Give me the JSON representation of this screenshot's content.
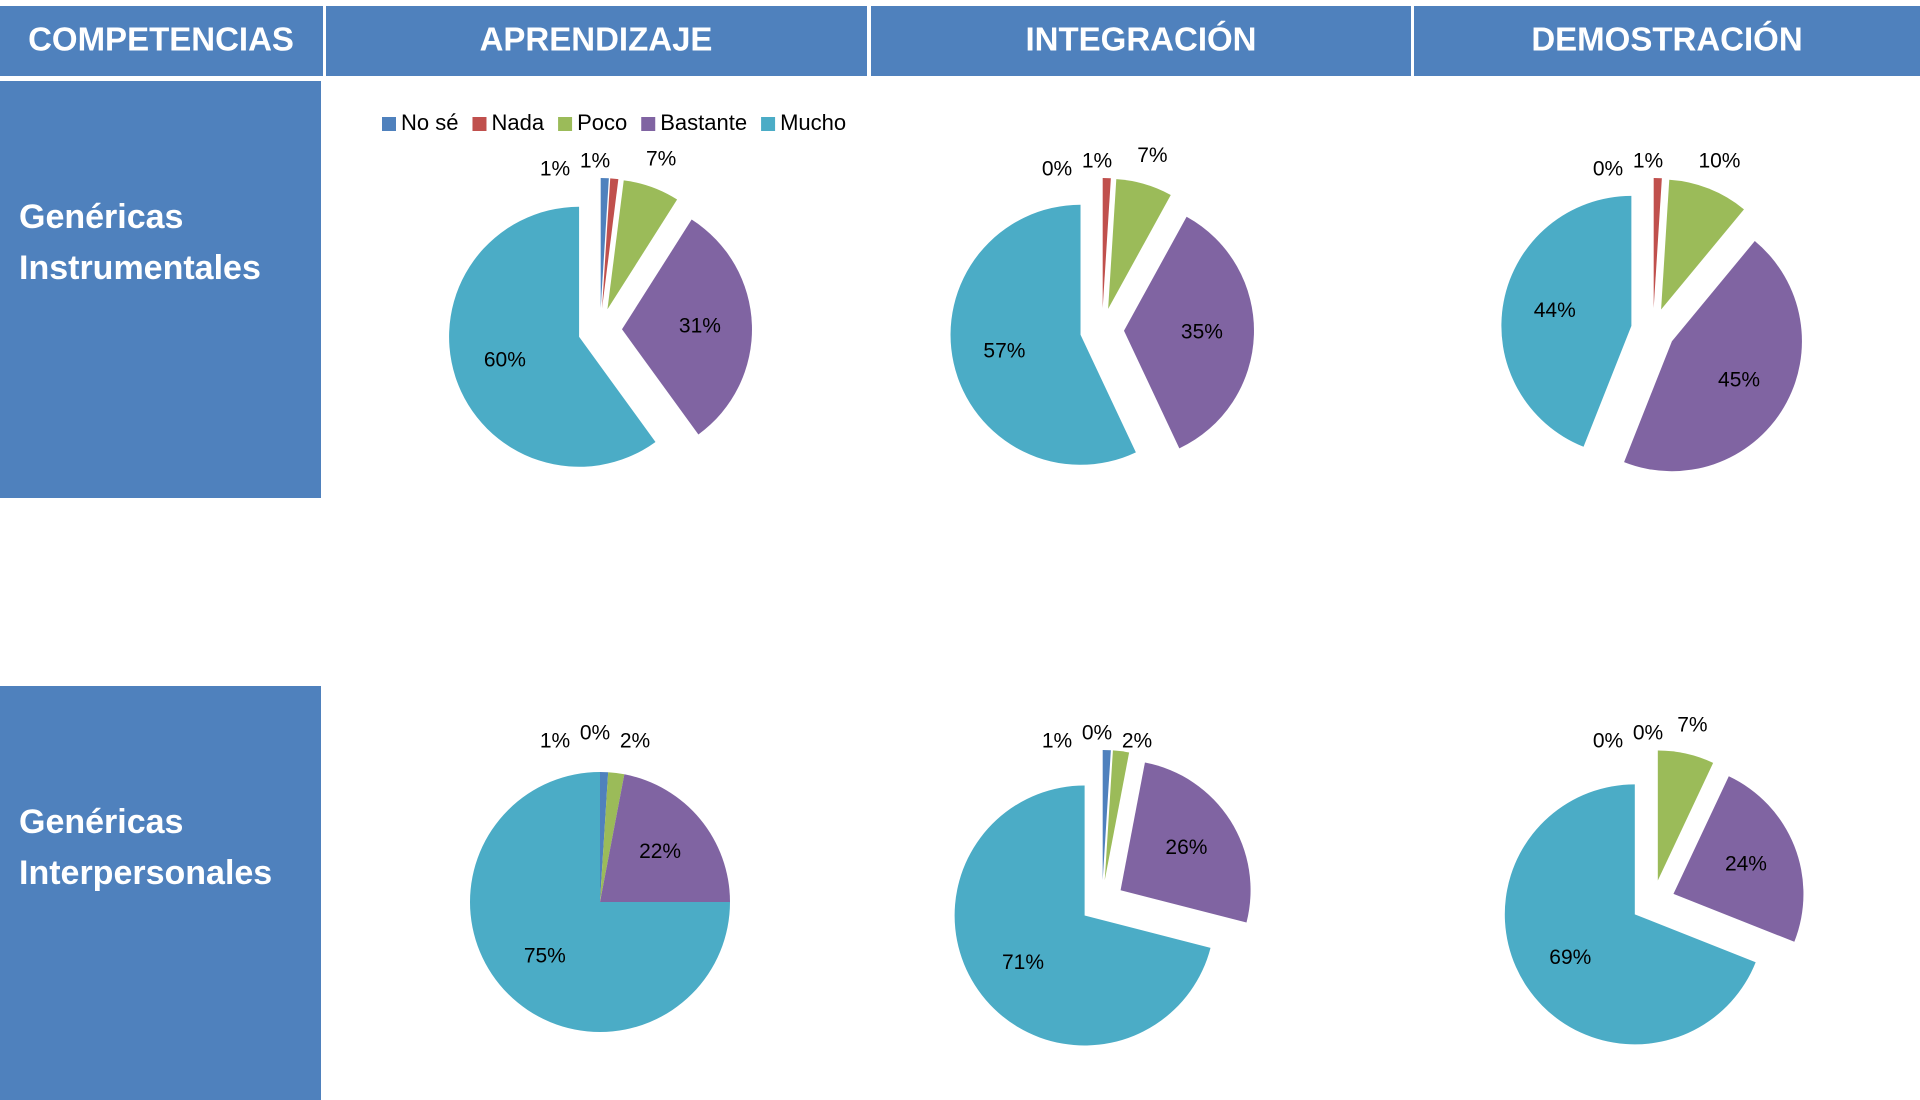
{
  "table": {
    "headers": [
      "COMPETENCIAS",
      "APRENDIZAJE",
      "INTEGRACIÓN",
      "DEMOSTRACIÓN"
    ],
    "row_labels": [
      [
        "Genéricas",
        "Instrumentales"
      ],
      [
        "Genéricas",
        "Interpersonales"
      ]
    ]
  },
  "chart_data": [
    {
      "type": "pie",
      "categories": [
        "No sé",
        "Nada",
        "Poco",
        "Bastante",
        "Mucho"
      ],
      "colors": [
        "#4f81bd",
        "#c0504d",
        "#9bbb59",
        "#8064a2",
        "#4bacc6"
      ],
      "values": [
        1,
        1,
        7,
        31,
        60
      ],
      "value_labels": [
        "1%",
        "1%",
        "7%",
        "31%",
        "60%"
      ],
      "explode": true,
      "legend": true
    },
    {
      "type": "pie",
      "categories": [
        "No sé",
        "Nada",
        "Poco",
        "Bastante",
        "Mucho"
      ],
      "colors": [
        "#4f81bd",
        "#c0504d",
        "#9bbb59",
        "#8064a2",
        "#4bacc6"
      ],
      "values": [
        0,
        1,
        7,
        35,
        57
      ],
      "value_labels": [
        "0%",
        "1%",
        "7%",
        "35%",
        "57%"
      ],
      "explode": true,
      "legend": false
    },
    {
      "type": "pie",
      "categories": [
        "No sé",
        "Nada",
        "Poco",
        "Bastante",
        "Mucho"
      ],
      "colors": [
        "#4f81bd",
        "#c0504d",
        "#9bbb59",
        "#8064a2",
        "#4bacc6"
      ],
      "values": [
        0,
        1,
        10,
        45,
        44
      ],
      "value_labels": [
        "0%",
        "1%",
        "10%",
        "45%",
        "44%"
      ],
      "explode": true,
      "legend": false
    },
    {
      "type": "pie",
      "categories": [
        "No sé",
        "Nada",
        "Poco",
        "Bastante",
        "Mucho"
      ],
      "colors": [
        "#4f81bd",
        "#c0504d",
        "#9bbb59",
        "#8064a2",
        "#4bacc6"
      ],
      "values": [
        1,
        0,
        2,
        22,
        75
      ],
      "value_labels": [
        "1%",
        "0%",
        "2%",
        "22%",
        "75%"
      ],
      "explode": false,
      "legend": false
    },
    {
      "type": "pie",
      "categories": [
        "No sé",
        "Nada",
        "Poco",
        "Bastante",
        "Mucho"
      ],
      "colors": [
        "#4f81bd",
        "#c0504d",
        "#9bbb59",
        "#8064a2",
        "#4bacc6"
      ],
      "values": [
        1,
        0,
        2,
        26,
        71
      ],
      "value_labels": [
        "1%",
        "0%",
        "2%",
        "26%",
        "71%"
      ],
      "explode": true,
      "legend": false
    },
    {
      "type": "pie",
      "categories": [
        "No sé",
        "Nada",
        "Poco",
        "Bastante",
        "Mucho"
      ],
      "colors": [
        "#4f81bd",
        "#c0504d",
        "#9bbb59",
        "#8064a2",
        "#4bacc6"
      ],
      "values": [
        0,
        0,
        7,
        24,
        69
      ],
      "value_labels": [
        "0%",
        "0%",
        "7%",
        "24%",
        "69%"
      ],
      "explode": true,
      "legend": false
    }
  ]
}
